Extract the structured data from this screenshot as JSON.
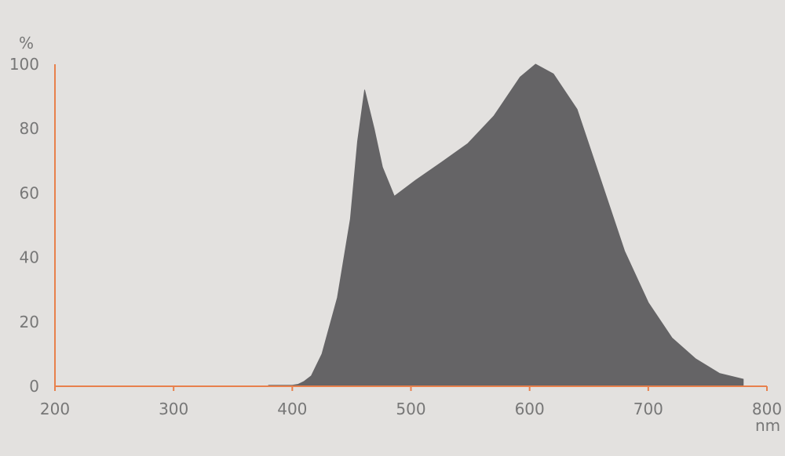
{
  "chart_data": {
    "type": "area",
    "xlabel": "nm",
    "ylabel": "%",
    "xlim": [
      200,
      800
    ],
    "ylim": [
      0,
      100
    ],
    "xticks": [
      200,
      300,
      400,
      500,
      600,
      700,
      800
    ],
    "yticks": [
      0,
      20,
      40,
      60,
      80,
      100
    ],
    "grid": false,
    "colors": {
      "fill": "#656466",
      "axis": "#e8804c",
      "background": "#e3e1df",
      "text": "#777777"
    },
    "series": [
      {
        "x": [
          380,
          400,
          405,
          410,
          416,
          425,
          438,
          449,
          455,
          461,
          469,
          476,
          486,
          504,
          526,
          548,
          570,
          592,
          605,
          620,
          640,
          660,
          680,
          700,
          720,
          740,
          760,
          780
        ],
        "y": [
          0.3,
          0.3,
          0.6,
          1.5,
          3.2,
          10,
          27.5,
          52,
          76,
          92,
          80,
          68,
          59,
          64,
          69.6,
          75.4,
          84,
          96,
          100,
          97,
          86,
          64,
          42,
          26,
          15,
          8.5,
          4,
          2.2
        ]
      }
    ]
  }
}
